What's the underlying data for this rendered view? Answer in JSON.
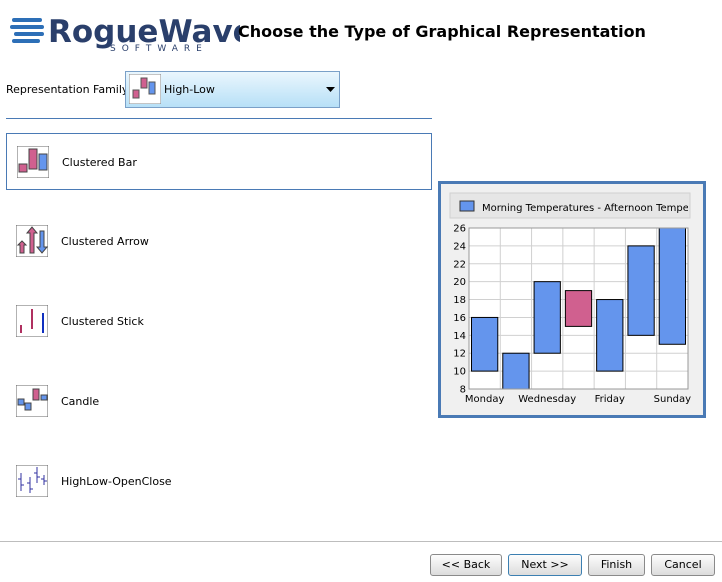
{
  "header": {
    "brand": "RogueWave",
    "brand_sub": "SOFTWARE",
    "title": "Choose the Type of Graphical Representation"
  },
  "family": {
    "label": "Representation Family:",
    "value": "High-Low"
  },
  "items": [
    "Clustered Bar",
    "Clustered Arrow",
    "Clustered Stick",
    "Candle",
    "HighLow-OpenClose"
  ],
  "buttons": [
    "<< Back",
    "Next >>",
    "Finish",
    "Cancel"
  ],
  "chart_data": {
    "type": "highlow",
    "legend": "Morning Temperatures - Afternoon Tempera",
    "categories": [
      "Monday",
      null,
      "Wednesday",
      null,
      "Friday",
      null,
      "Sunday"
    ],
    "series": [
      {
        "values": [
          10,
          8,
          12,
          19,
          10,
          14,
          13
        ]
      },
      {
        "values": [
          16,
          12,
          20,
          15,
          18,
          24,
          26
        ]
      }
    ],
    "up_color": "#6495ed",
    "down_color": "#d0608f",
    "ylim": [
      8,
      26
    ],
    "yticks": [
      8,
      10,
      12,
      14,
      16,
      18,
      20,
      22,
      24,
      26
    ],
    "grid": true
  }
}
